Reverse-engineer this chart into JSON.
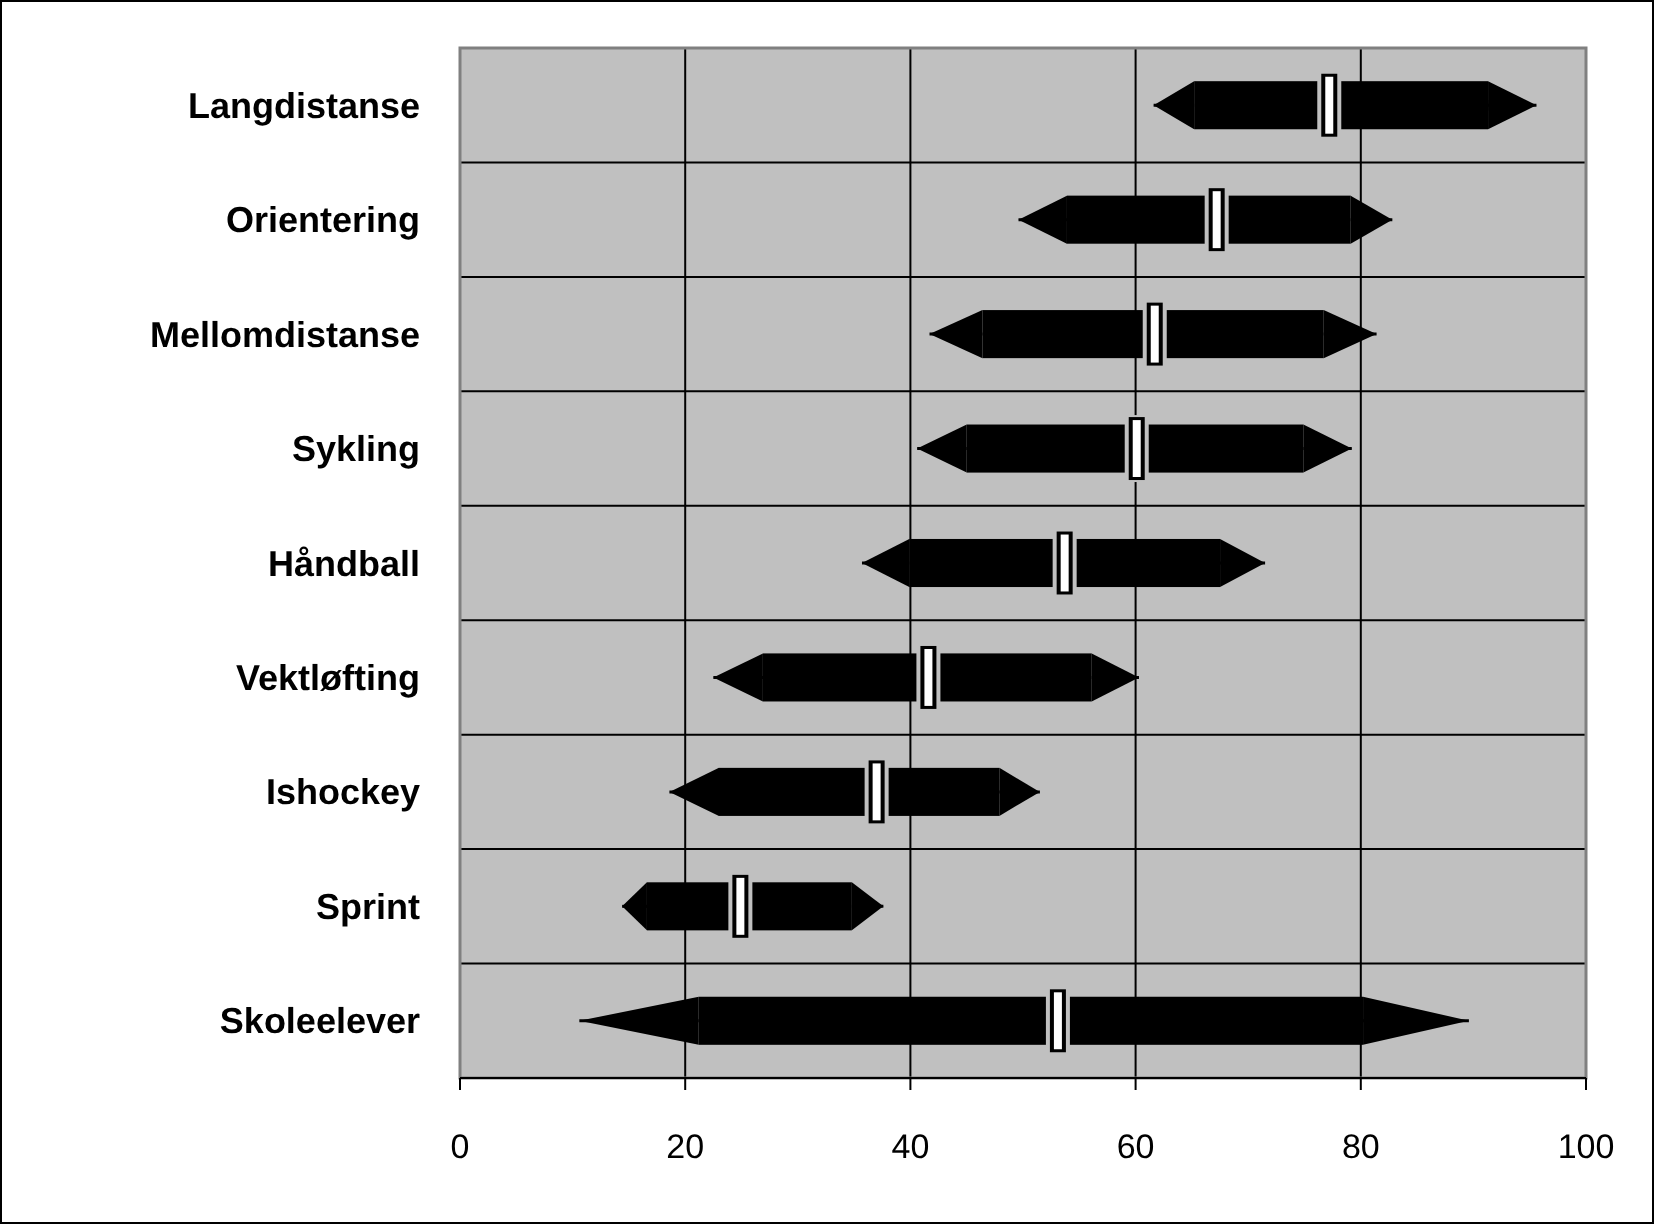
{
  "chart_data": {
    "type": "box",
    "orientation": "horizontal",
    "categories": [
      "Langdistanse",
      "Orientering",
      "Mellomdistanse",
      "Sykling",
      "Håndball",
      "Vektløfting",
      "Ishockey",
      "Sprint",
      "Skoleelever"
    ],
    "series": [
      {
        "color": "#000000",
        "boxes": [
          {
            "low": 61.6,
            "q1": 65.2,
            "median": 77.2,
            "q3": 91.3,
            "high": 95.6
          },
          {
            "low": 49.6,
            "q1": 53.9,
            "median": 67.2,
            "q3": 79.1,
            "high": 82.8
          },
          {
            "low": 41.7,
            "q1": 46.4,
            "median": 61.7,
            "q3": 76.7,
            "high": 81.4
          },
          {
            "low": 40.6,
            "q1": 45,
            "median": 60.1,
            "q3": 74.9,
            "high": 79.2
          },
          {
            "low": 35.7,
            "q1": 39.9,
            "median": 53.7,
            "q3": 67.5,
            "high": 71.5
          },
          {
            "low": 22.5,
            "q1": 26.9,
            "median": 41.6,
            "q3": 56.1,
            "high": 60.3
          },
          {
            "low": 18.6,
            "q1": 23,
            "median": 37,
            "q3": 47.9,
            "high": 51.5
          },
          {
            "low": 14.4,
            "q1": 16.6,
            "median": 24.9,
            "q3": 34.8,
            "high": 37.6
          },
          {
            "low": 10.6,
            "q1": 21.2,
            "median": 53.1,
            "q3": 80.2,
            "high": 89.6
          }
        ]
      }
    ],
    "xlim": [
      0,
      100
    ],
    "xticks": [
      0,
      20,
      40,
      60,
      80,
      100
    ],
    "grid": true
  }
}
